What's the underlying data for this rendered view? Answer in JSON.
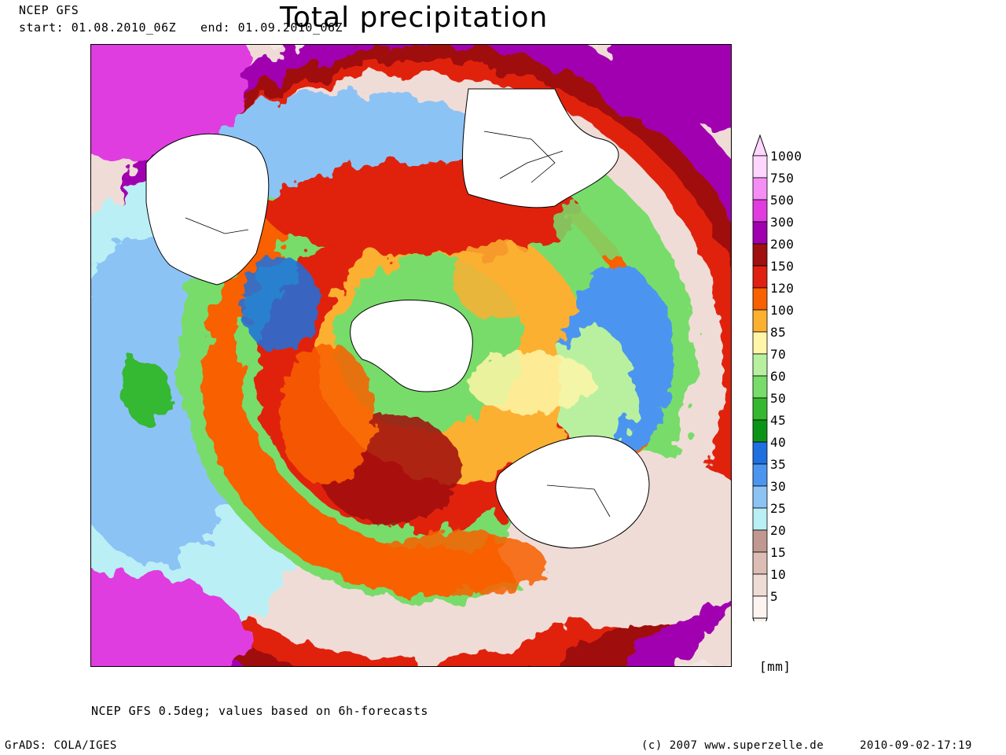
{
  "header": {
    "model": "NCEP GFS",
    "start": "start: 01.08.2010_06Z",
    "end": "end: 01.09.2010_06Z",
    "title": "Total precipitation"
  },
  "legend": {
    "unit": "[mm]",
    "levels": [
      {
        "label": "1000",
        "color": "#ffd6ff"
      },
      {
        "label": "750",
        "color": "#f48df4"
      },
      {
        "label": "500",
        "color": "#e03ce0"
      },
      {
        "label": "300",
        "color": "#a100b0"
      },
      {
        "label": "200",
        "color": "#a01010"
      },
      {
        "label": "150",
        "color": "#e02010"
      },
      {
        "label": "120",
        "color": "#f86000"
      },
      {
        "label": "100",
        "color": "#fbb030"
      },
      {
        "label": "85",
        "color": "#fff6a8"
      },
      {
        "label": "70",
        "color": "#b8f0a0"
      },
      {
        "label": "60",
        "color": "#78dc6a"
      },
      {
        "label": "50",
        "color": "#35b830"
      },
      {
        "label": "45",
        "color": "#0c9418"
      },
      {
        "label": "40",
        "color": "#1e6fe0"
      },
      {
        "label": "35",
        "color": "#4b95f0"
      },
      {
        "label": "30",
        "color": "#8cc3f5"
      },
      {
        "label": "25",
        "color": "#baf0f5"
      },
      {
        "label": "20",
        "color": "#c09890"
      },
      {
        "label": "15",
        "color": "#dcbcb4"
      },
      {
        "label": "10",
        "color": "#f0dcd6"
      },
      {
        "label": "5",
        "color": "#fdf3f0"
      }
    ]
  },
  "footer": {
    "note": "NCEP GFS 0.5deg; values based on 6h-forecasts",
    "grads": "GrADS: COLA/IGES",
    "copyright": "(c) 2007 www.superzelle.de",
    "timestamp": "2010-09-02-17:19"
  },
  "map": {
    "land_color": "#ffffff",
    "outline_color": "#000000"
  }
}
